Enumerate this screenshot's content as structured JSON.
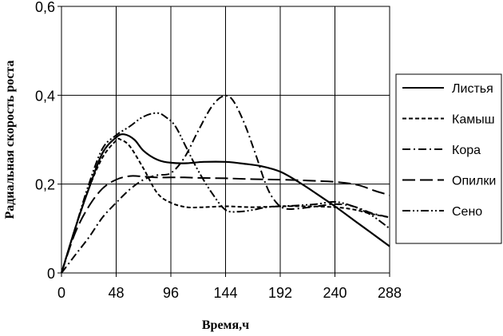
{
  "chart_data": {
    "type": "line",
    "xlabel": "Время,ч",
    "ylabel": "Радиальная скорость роста",
    "xlim": [
      0,
      288
    ],
    "ylim": [
      0,
      0.6
    ],
    "x_ticks": [
      0,
      48,
      96,
      144,
      192,
      240,
      288
    ],
    "x_tick_labels": [
      "0",
      "48",
      "96",
      "144",
      "192",
      "240",
      "288"
    ],
    "y_ticks": [
      0,
      0.2,
      0.4,
      0.6
    ],
    "y_tick_labels": [
      "0",
      "0,2",
      "0,4",
      "0,6"
    ],
    "grid": true,
    "legend": "right",
    "series": [
      {
        "name": "Листья",
        "dash": "solid",
        "points": [
          [
            0,
            0
          ],
          [
            12,
            0.1
          ],
          [
            24,
            0.19
          ],
          [
            36,
            0.27
          ],
          [
            48,
            0.305
          ],
          [
            55,
            0.312
          ],
          [
            64,
            0.3
          ],
          [
            72,
            0.275
          ],
          [
            84,
            0.255
          ],
          [
            96,
            0.248
          ],
          [
            110,
            0.247
          ],
          [
            125,
            0.25
          ],
          [
            144,
            0.25
          ],
          [
            160,
            0.246
          ],
          [
            176,
            0.24
          ],
          [
            192,
            0.228
          ],
          [
            208,
            0.205
          ],
          [
            224,
            0.178
          ],
          [
            240,
            0.15
          ],
          [
            256,
            0.12
          ],
          [
            272,
            0.09
          ],
          [
            288,
            0.06
          ]
        ]
      },
      {
        "name": "Камыш",
        "dash": "short",
        "points": [
          [
            0,
            0
          ],
          [
            12,
            0.1
          ],
          [
            24,
            0.19
          ],
          [
            36,
            0.26
          ],
          [
            48,
            0.298
          ],
          [
            52,
            0.3
          ],
          [
            60,
            0.285
          ],
          [
            72,
            0.235
          ],
          [
            84,
            0.18
          ],
          [
            96,
            0.158
          ],
          [
            110,
            0.148
          ],
          [
            125,
            0.148
          ],
          [
            144,
            0.15
          ],
          [
            168,
            0.148
          ],
          [
            192,
            0.15
          ],
          [
            216,
            0.15
          ],
          [
            240,
            0.148
          ],
          [
            256,
            0.143
          ],
          [
            272,
            0.133
          ],
          [
            288,
            0.125
          ]
        ]
      },
      {
        "name": "Кора",
        "dash": "dashdot",
        "points": [
          [
            0,
            0
          ],
          [
            12,
            0.04
          ],
          [
            24,
            0.08
          ],
          [
            36,
            0.125
          ],
          [
            48,
            0.158
          ],
          [
            60,
            0.188
          ],
          [
            72,
            0.21
          ],
          [
            84,
            0.22
          ],
          [
            96,
            0.225
          ],
          [
            108,
            0.26
          ],
          [
            120,
            0.32
          ],
          [
            132,
            0.375
          ],
          [
            142,
            0.398
          ],
          [
            150,
            0.39
          ],
          [
            160,
            0.34
          ],
          [
            170,
            0.27
          ],
          [
            180,
            0.195
          ],
          [
            188,
            0.16
          ],
          [
            196,
            0.145
          ],
          [
            208,
            0.145
          ],
          [
            224,
            0.15
          ],
          [
            240,
            0.155
          ],
          [
            256,
            0.15
          ],
          [
            272,
            0.135
          ],
          [
            288,
            0.125
          ]
        ]
      },
      {
        "name": "Опилки",
        "dash": "long",
        "points": [
          [
            0,
            0
          ],
          [
            12,
            0.09
          ],
          [
            24,
            0.15
          ],
          [
            36,
            0.19
          ],
          [
            48,
            0.21
          ],
          [
            60,
            0.218
          ],
          [
            72,
            0.217
          ],
          [
            84,
            0.215
          ],
          [
            96,
            0.215
          ],
          [
            108,
            0.215
          ],
          [
            120,
            0.214
          ],
          [
            144,
            0.213
          ],
          [
            168,
            0.211
          ],
          [
            192,
            0.21
          ],
          [
            216,
            0.208
          ],
          [
            240,
            0.205
          ],
          [
            260,
            0.198
          ],
          [
            275,
            0.185
          ],
          [
            288,
            0.175
          ]
        ]
      },
      {
        "name": "Сено",
        "dash": "dashdotdot",
        "points": [
          [
            0,
            0
          ],
          [
            12,
            0.1
          ],
          [
            24,
            0.2
          ],
          [
            36,
            0.28
          ],
          [
            48,
            0.31
          ],
          [
            60,
            0.33
          ],
          [
            72,
            0.352
          ],
          [
            84,
            0.36
          ],
          [
            92,
            0.35
          ],
          [
            100,
            0.33
          ],
          [
            110,
            0.28
          ],
          [
            120,
            0.23
          ],
          [
            132,
            0.18
          ],
          [
            144,
            0.142
          ],
          [
            156,
            0.138
          ],
          [
            168,
            0.142
          ],
          [
            180,
            0.148
          ],
          [
            192,
            0.15
          ],
          [
            208,
            0.152
          ],
          [
            224,
            0.155
          ],
          [
            240,
            0.16
          ],
          [
            256,
            0.15
          ],
          [
            272,
            0.13
          ],
          [
            288,
            0.1
          ]
        ]
      }
    ]
  }
}
